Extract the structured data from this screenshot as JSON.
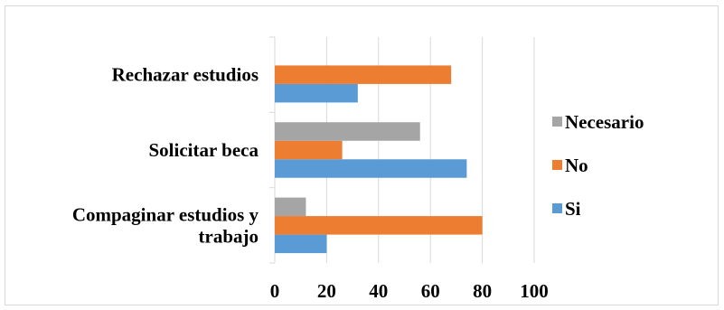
{
  "chart_data": {
    "type": "bar",
    "orientation": "horizontal",
    "categories": [
      [
        "Compaginar estudios y",
        "trabajo"
      ],
      [
        "Solicitar beca"
      ],
      [
        "Rechazar estudios"
      ]
    ],
    "series": [
      {
        "name": "Si",
        "color": "#5b9bd5",
        "values": [
          20,
          74,
          32
        ]
      },
      {
        "name": "No",
        "color": "#ed7d31",
        "values": [
          80,
          26,
          68
        ]
      },
      {
        "name": "Necesario",
        "color": "#a5a5a5",
        "values": [
          12,
          56,
          null
        ]
      }
    ],
    "xlim": [
      0,
      100
    ],
    "xticks": [
      0,
      20,
      40,
      60,
      80,
      100
    ],
    "grid": true,
    "legend": "right"
  }
}
